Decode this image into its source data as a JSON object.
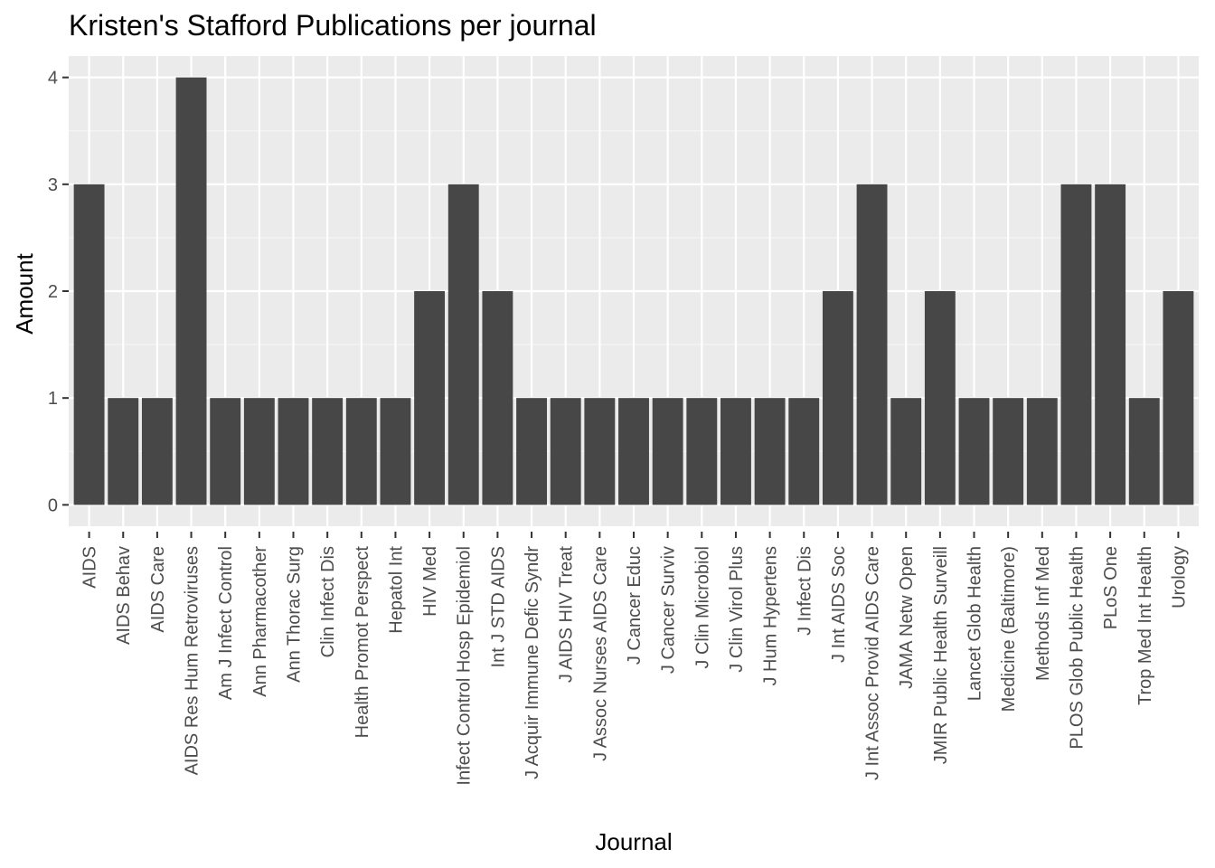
{
  "chart_data": {
    "type": "bar",
    "title": "Kristen's Stafford Publications per journal",
    "xlabel": "Journal",
    "ylabel": "Amount",
    "ylim": [
      0,
      4.2
    ],
    "yticks": [
      0,
      1,
      2,
      3,
      4
    ],
    "grid": true,
    "legend": "none",
    "categories": [
      "AIDS",
      "AIDS Behav",
      "AIDS Care",
      "AIDS Res Hum Retroviruses",
      "Am J Infect Control",
      "Ann Pharmacother",
      "Ann Thorac Surg",
      "Clin Infect Dis",
      "Health Promot Perspect",
      "Hepatol Int",
      "HIV Med",
      "Infect Control Hosp Epidemiol",
      "Int J STD AIDS",
      "J Acquir Immune Defic Syndr",
      "J AIDS HIV Treat",
      "J Assoc Nurses AIDS Care",
      "J Cancer Educ",
      "J Cancer Surviv",
      "J Clin Microbiol",
      "J Clin Virol Plus",
      "J Hum Hypertens",
      "J Infect Dis",
      "J Int AIDS Soc",
      "J Int Assoc Provid AIDS Care",
      "JAMA Netw Open",
      "JMIR Public Health Surveill",
      "Lancet Glob Health",
      "Medicine (Baltimore)",
      "Methods Inf Med",
      "PLOS Glob Public Health",
      "PLoS One",
      "Trop Med Int Health",
      "Urology"
    ],
    "values": [
      3,
      1,
      1,
      4,
      1,
      1,
      1,
      1,
      1,
      1,
      2,
      3,
      2,
      1,
      1,
      1,
      1,
      1,
      1,
      1,
      1,
      1,
      2,
      3,
      1,
      2,
      1,
      1,
      1,
      3,
      3,
      1,
      2
    ],
    "colors": {
      "bar": "#474747",
      "panel": "#ebebeb",
      "grid_major": "#ffffff",
      "grid_minor": "#f5f5f5",
      "tick": "#333333",
      "tick_label": "#4d4d4d"
    }
  }
}
